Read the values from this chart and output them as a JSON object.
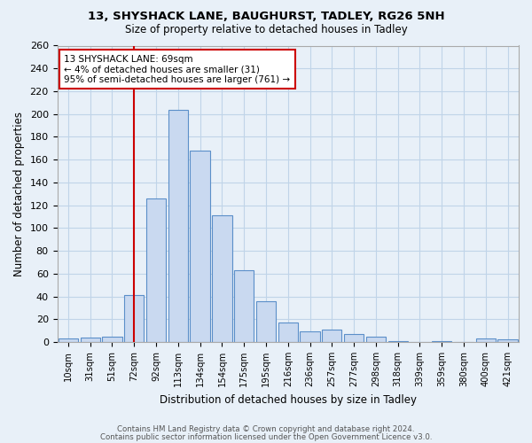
{
  "title1": "13, SHYSHACK LANE, BAUGHURST, TADLEY, RG26 5NH",
  "title2": "Size of property relative to detached houses in Tadley",
  "xlabel": "Distribution of detached houses by size in Tadley",
  "ylabel": "Number of detached properties",
  "categories": [
    "10sqm",
    "31sqm",
    "51sqm",
    "72sqm",
    "92sqm",
    "113sqm",
    "134sqm",
    "154sqm",
    "175sqm",
    "195sqm",
    "216sqm",
    "236sqm",
    "257sqm",
    "277sqm",
    "298sqm",
    "318sqm",
    "339sqm",
    "359sqm",
    "380sqm",
    "400sqm",
    "421sqm"
  ],
  "values": [
    3,
    4,
    5,
    41,
    126,
    204,
    168,
    111,
    63,
    36,
    17,
    9,
    11,
    7,
    5,
    1,
    0,
    1,
    0,
    3,
    2
  ],
  "bar_color": "#c9d9f0",
  "bar_edge_color": "#5b8fc9",
  "vline_x": 3.0,
  "vline_color": "#cc0000",
  "annotation_title": "13 SHYSHACK LANE: 69sqm",
  "annotation_line1": "← 4% of detached houses are smaller (31)",
  "annotation_line2": "95% of semi-detached houses are larger (761) →",
  "annotation_box_color": "white",
  "annotation_box_edge": "#cc0000",
  "ylim": [
    0,
    260
  ],
  "yticks": [
    0,
    20,
    40,
    60,
    80,
    100,
    120,
    140,
    160,
    180,
    200,
    220,
    240,
    260
  ],
  "grid_color": "#c0d4e8",
  "bg_color": "#e8f0f8",
  "footer1": "Contains HM Land Registry data © Crown copyright and database right 2024.",
  "footer2": "Contains public sector information licensed under the Open Government Licence v3.0."
}
